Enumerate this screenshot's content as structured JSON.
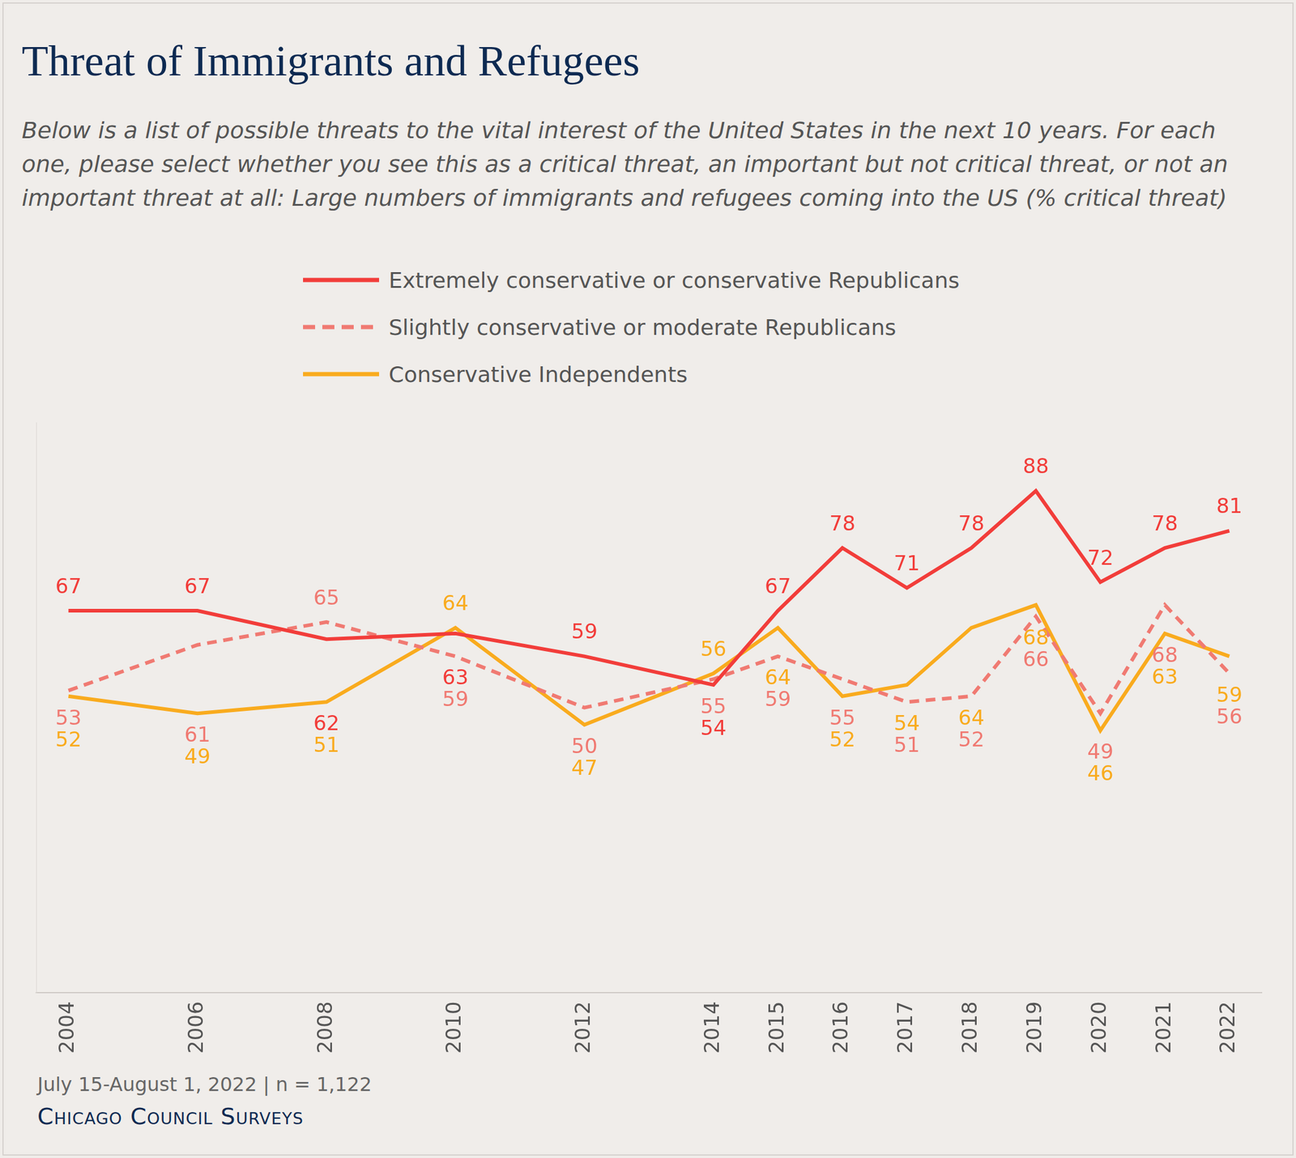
{
  "chart_data": {
    "type": "line",
    "title": "Threat of Immigrants and Refugees",
    "subtitle": "Below is a list of possible threats to the vital interest of the United States in the next 10 years. For each one, please select whether you see this as a critical threat, an important but not critical threat, or not an important threat at all: Large numbers of immigrants and refugees coming into the US (% critical threat)",
    "x": [
      2004,
      2006,
      2008,
      2010,
      2012,
      2014,
      2015,
      2016,
      2017,
      2018,
      2019,
      2020,
      2021,
      2022
    ],
    "series": [
      {
        "name": "Extremely conservative or conservative Republicans",
        "color": "#f23d3a",
        "line_style": "solid",
        "values": [
          67,
          67,
          62,
          63,
          59,
          54,
          67,
          78,
          71,
          78,
          88,
          72,
          78,
          81
        ]
      },
      {
        "name": "Slightly conservative or moderate Republicans",
        "color": "#f07a72",
        "line_style": "dashed",
        "values": [
          53,
          61,
          65,
          59,
          50,
          55,
          59,
          55,
          51,
          52,
          66,
          49,
          68,
          56
        ]
      },
      {
        "name": "Conservative Independents",
        "color": "#f9ab1e",
        "line_style": "solid",
        "values": [
          52,
          49,
          51,
          64,
          47,
          56,
          64,
          52,
          54,
          64,
          68,
          46,
          63,
          59
        ]
      }
    ],
    "xlim": [
      2003.5,
      2022.5
    ],
    "xticks": [
      2004,
      2006,
      2008,
      2010,
      2012,
      2014,
      2015,
      2016,
      2017,
      2018,
      2019,
      2020,
      2021,
      2022
    ],
    "ylim": [
      0,
      100
    ],
    "grid": false,
    "legend": "top",
    "data_labels": true,
    "tick_labels": "x",
    "note": "July 15-August 1, 2022 | n = 1,122",
    "source": "Chicago Council Surveys"
  }
}
